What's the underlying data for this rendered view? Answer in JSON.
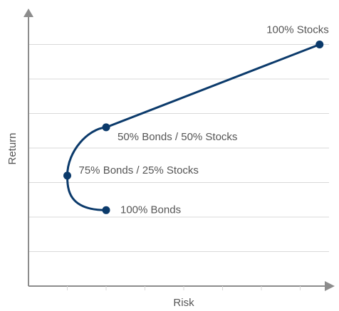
{
  "chart_data": {
    "type": "line",
    "xlabel": "Risk",
    "ylabel": "Return",
    "grid": true,
    "colors": {
      "line": "#0b3a6b",
      "grid": "#d9d9d9",
      "axis": "#8c8c8c",
      "text": "#555555"
    },
    "points": [
      {
        "label": "100% Bonds",
        "x": 2,
        "y": 2.2
      },
      {
        "label": "75% Bonds / 25% Stocks",
        "x": 1,
        "y": 3.2
      },
      {
        "label": "50% Bonds / 50% Stocks",
        "x": 2,
        "y": 4.6
      },
      {
        "label": "100% Stocks",
        "x": 7.5,
        "y": 7.0
      }
    ],
    "xlim": [
      0,
      8
    ],
    "ylim": [
      0,
      8
    ]
  }
}
